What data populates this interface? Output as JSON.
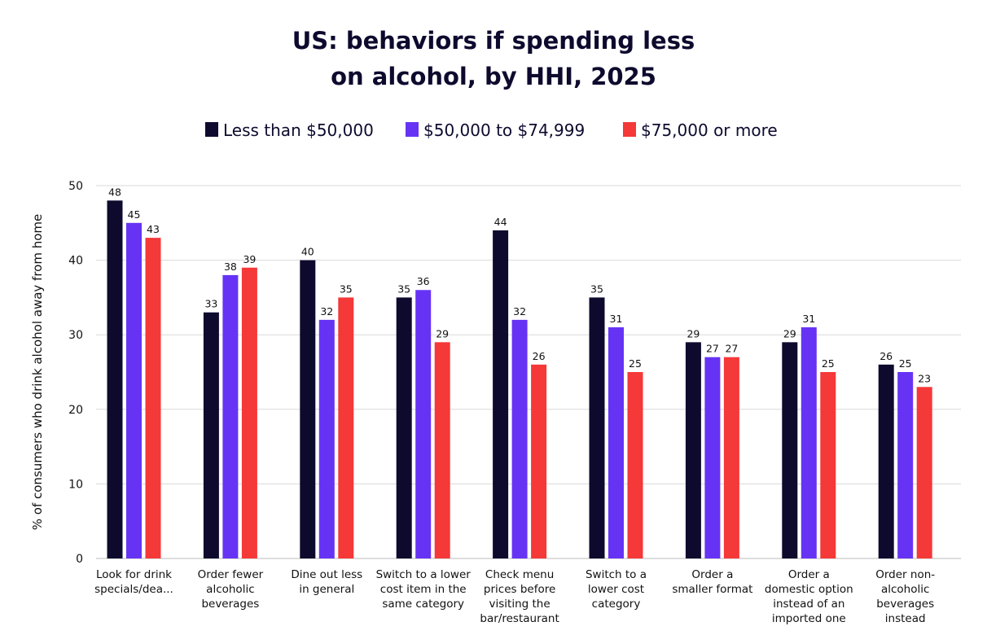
{
  "chart_data": {
    "type": "bar",
    "title": [
      "US: behaviors if spending less",
      "on alcohol, by HHI, 2025"
    ],
    "ylabel": "% of consumers who drink alcohol away from home",
    "xlabel": "",
    "ylim": [
      0,
      50
    ],
    "yticks": [
      0,
      10,
      20,
      30,
      40,
      50
    ],
    "grid": true,
    "legend_position": "top",
    "categories": [
      [
        "Look for drink",
        "specials/dea..."
      ],
      [
        "Order fewer",
        "alcoholic",
        "beverages"
      ],
      [
        "Dine out less",
        "in general"
      ],
      [
        "Switch to a lower",
        "cost item in the",
        "same category"
      ],
      [
        "Check menu",
        "prices before",
        "visiting the",
        "bar/restaurant"
      ],
      [
        "Switch to a",
        "lower cost",
        "category"
      ],
      [
        "Order a",
        "smaller format"
      ],
      [
        "Order a",
        "domestic option",
        "instead of an",
        "imported one"
      ],
      [
        "Order non-",
        "alcoholic",
        "beverages",
        "instead"
      ]
    ],
    "series": [
      {
        "name": "Less than $50,000",
        "color": "#0d0a2e",
        "values": [
          48,
          33,
          40,
          35,
          44,
          35,
          29,
          29,
          26
        ]
      },
      {
        "name": "$50,000 to $74,999",
        "color": "#6633f5",
        "values": [
          45,
          38,
          32,
          36,
          32,
          31,
          27,
          31,
          25
        ]
      },
      {
        "name": "$75,000 or more",
        "color": "#f53838",
        "values": [
          43,
          39,
          35,
          29,
          26,
          25,
          27,
          25,
          23
        ]
      }
    ]
  }
}
